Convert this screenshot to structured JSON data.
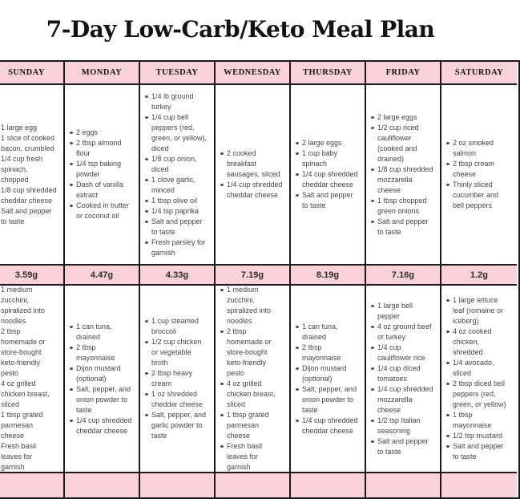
{
  "title": "7-Day Low-Carb/Keto Meal Plan",
  "colors": {
    "header_pink": "#f9d2d9",
    "border_black": "#1a1a1a",
    "body_text": "#474747"
  },
  "table": {
    "days": [
      "SUNDAY",
      "MONDAY",
      "TUESDAY",
      "WEDNESDAY",
      "THURSDAY",
      "FRIDAY",
      "SATURDAY"
    ],
    "breakfast": [
      [
        "1 large egg",
        "1 slice of cooked bacon, crumbled",
        "1/4 cup fresh spinach, chopped",
        "1/8 cup shredded cheddar cheese",
        "Salt and pepper to taste"
      ],
      [
        "2 eggs",
        "2 tbsp almond flour",
        "1/4 tsp baking powder",
        "Dash of vanilla extract",
        "Cooked in butter or coconut oil"
      ],
      [
        "1/4 lb ground turkey",
        "1/4 cup bell peppers (red, green, or yellow), diced",
        "1/8 cup onion, diced",
        "1 clove garlic, minced",
        "1 tbsp olive oil",
        "1/4 tsp paprika",
        "Salt and pepper to taste",
        "Fresh parsley for garnish"
      ],
      [
        "2 cooked breakfast sausages, sliced",
        "1/4 cup shredded cheddar cheese"
      ],
      [
        "2 large eggs",
        "1 cup baby spinach",
        "1/4 cup shredded cheddar cheese",
        "Salt and pepper to taste"
      ],
      [
        "2 large eggs",
        "1/2 cup riced cauliflower (cooked and drained)",
        "1/8 cup shredded mozzarella cheese",
        "1 tbsp chopped green onions",
        "Salt and pepper to taste"
      ],
      [
        "2 oz smoked salmon",
        "2 tbsp cream cheese",
        "Thinly sliced cucumber and bell peppers"
      ]
    ],
    "net_carbs_breakfast": [
      "3.59g",
      "4.47g",
      "4.33g",
      "7.19g",
      "8.19g",
      "7.16g",
      "1.2g"
    ],
    "lunch": [
      [
        "1 medium zucchini, spiralized into noodles",
        "2 tbsp homemade or store-bought keto-friendly pesto",
        "4 oz grilled chicken breast, sliced",
        "1 tbsp grated parmesan cheese",
        "Fresh basil leaves for garnish"
      ],
      [
        "1 can tuna, drained",
        "2 tbsp mayonnaise",
        "Dijon mustard (optional)",
        "Salt, pepper, and onion powder to taste",
        "1/4 cup shredded cheddar cheese"
      ],
      [
        "1 cup steamed broccoli",
        "1/2 cup chicken or vegetable broth",
        "2 tbsp heavy cream",
        "1 oz shredded cheddar cheese",
        "Salt, pepper, and garlic powder to taste"
      ],
      [
        "1 medium zucchini, spiralized into noodles",
        "2 tbsp homemade or store-bought keto-friendly pesto",
        "4 oz grilled chicken breast, sliced",
        "1 tbsp grated parmesan cheese",
        "Fresh basil leaves for garnish"
      ],
      [
        "1 can tuna, drained",
        "2 tbsp mayonnaise",
        "Dijon mustard (optional)",
        "Salt, pepper, and onion powder to taste",
        "1/4 cup shredded cheddar cheese"
      ],
      [
        "1 large bell pepper",
        "4 oz ground beef or turkey",
        "1/4 cup cauliflower rice",
        "1/4 cup diced tomatoes",
        "1/4 cup shredded mozzarella cheese",
        "1/2 tsp Italian seasoning",
        "Salt and pepper to taste"
      ],
      [
        "1 large lettuce leaf (romaine or iceberg)",
        "4 oz cooked chicken, shredded",
        "1/4 avocado, sliced",
        "2 tbsp diced bell peppers (red, green, or yellow)",
        "1 tbsp mayonnaise",
        "1/2 tsp mustard",
        "Salt and pepper to taste"
      ]
    ],
    "net_carbs_lunch": [
      "",
      "",
      "",
      "",
      "",
      "",
      ""
    ]
  }
}
